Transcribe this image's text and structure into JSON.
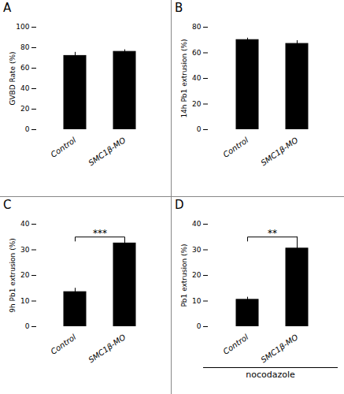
{
  "chart_data": [
    {
      "type": "bar",
      "title": "A",
      "ylabel": "GVBD Rate (%)",
      "categories": [
        "Control",
        "SMC1β-MO"
      ],
      "values": [
        72,
        76
      ],
      "errors": [
        3.5,
        2.0
      ],
      "color": "#000000",
      "ylim": [
        0,
        100
      ],
      "yticks": [
        0,
        20,
        40,
        60,
        80,
        100
      ],
      "grid": false,
      "annotations": []
    },
    {
      "type": "bar",
      "title": "B",
      "ylabel": "14h Pb1 extrusion (%)",
      "categories": [
        "Control",
        "SMC1β-MO"
      ],
      "values": [
        70,
        67
      ],
      "errors": [
        1.5,
        2.5
      ],
      "color": "#000000",
      "ylim": [
        0,
        80
      ],
      "yticks": [
        0,
        20,
        40,
        60,
        80
      ],
      "grid": false,
      "annotations": []
    },
    {
      "type": "bar",
      "title": "C",
      "ylabel": "9h Pb1 extrusion (%)",
      "categories": [
        "Control",
        "SMC1β-MO"
      ],
      "values": [
        13.5,
        32.5
      ],
      "errors": [
        1.5,
        1.0
      ],
      "color": "#000000",
      "ylim": [
        0,
        40
      ],
      "yticks": [
        0,
        10,
        20,
        30,
        40
      ],
      "grid": false,
      "annotations": [
        {
          "text": "***",
          "type": "bracket"
        }
      ]
    },
    {
      "type": "bar",
      "title": "D",
      "ylabel": "Pb1 extrusion (%)",
      "categories": [
        "Control",
        "SMC1β-MO"
      ],
      "values": [
        10.5,
        30.5
      ],
      "errors": [
        1.0,
        4.5
      ],
      "color": "#000000",
      "ylim": [
        0,
        40
      ],
      "yticks": [
        0,
        10,
        20,
        30,
        40
      ],
      "grid": false,
      "annotations": [
        {
          "text": "**",
          "type": "bracket"
        },
        {
          "text": "nocodazole",
          "type": "underline"
        }
      ]
    }
  ]
}
